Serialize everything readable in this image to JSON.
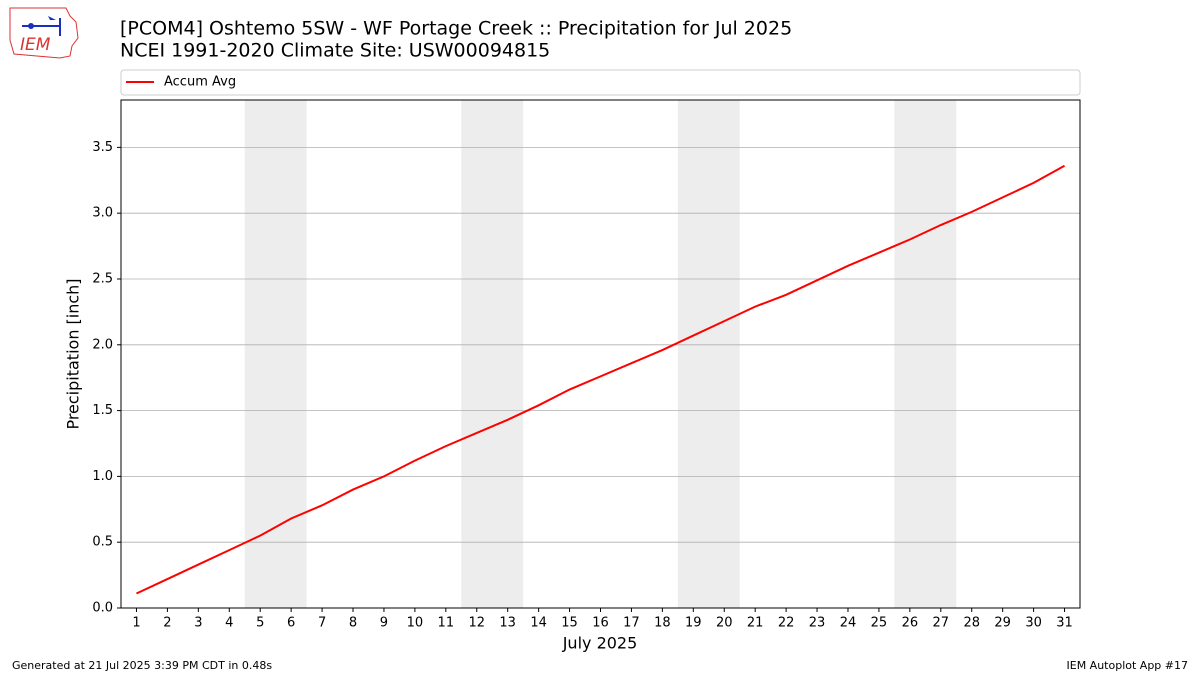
{
  "chart_data": {
    "type": "line",
    "title": "[PCOM4] Oshtemo 5SW - WF Portage Creek :: Precipitation for Jul 2025",
    "subtitle": "NCEI 1991-2020 Climate Site: USW00094815",
    "logo": "IEM",
    "x_label": "July 2025",
    "y_label": "Precipitation [inch]",
    "footer_left": "Generated at 21 Jul 2025 3:39 PM CDT in 0.48s",
    "footer_right": "IEM Autoplot App #17",
    "x": [
      1,
      2,
      3,
      4,
      5,
      6,
      7,
      8,
      9,
      10,
      11,
      12,
      13,
      14,
      15,
      16,
      17,
      18,
      19,
      20,
      21,
      22,
      23,
      24,
      25,
      26,
      27,
      28,
      29,
      30,
      31
    ],
    "series": [
      {
        "name": "Accum Avg",
        "color": "#ff0000",
        "values": [
          0.11,
          0.22,
          0.33,
          0.44,
          0.55,
          0.68,
          0.78,
          0.9,
          1.0,
          1.12,
          1.23,
          1.33,
          1.43,
          1.54,
          1.66,
          1.76,
          1.86,
          1.96,
          2.07,
          2.18,
          2.29,
          2.38,
          2.49,
          2.6,
          2.7,
          2.8,
          2.91,
          3.01,
          3.12,
          3.23,
          3.36
        ]
      }
    ],
    "xlim": [
      0.5,
      31.5
    ],
    "xticks": [
      1,
      2,
      3,
      4,
      5,
      6,
      7,
      8,
      9,
      10,
      11,
      12,
      13,
      14,
      15,
      16,
      17,
      18,
      19,
      20,
      21,
      22,
      23,
      24,
      25,
      26,
      27,
      28,
      29,
      30,
      31
    ],
    "ylim": [
      0,
      3.86
    ],
    "yticks": [
      {
        "value": 0,
        "label": "0.0"
      },
      {
        "value": 0.5,
        "label": "0.5"
      },
      {
        "value": 1,
        "label": "1.0"
      },
      {
        "value": 1.5,
        "label": "1.5"
      },
      {
        "value": 2,
        "label": "2.0"
      },
      {
        "value": 2.5,
        "label": "2.5"
      },
      {
        "value": 3,
        "label": "3.0"
      },
      {
        "value": 3.5,
        "label": "3.5"
      }
    ],
    "grid": "y",
    "shaded_spans": [
      [
        4.5,
        6.5
      ],
      [
        11.5,
        13.5
      ],
      [
        18.5,
        20.5
      ],
      [
        25.5,
        27.5
      ]
    ],
    "shade_color": "#ededed"
  }
}
